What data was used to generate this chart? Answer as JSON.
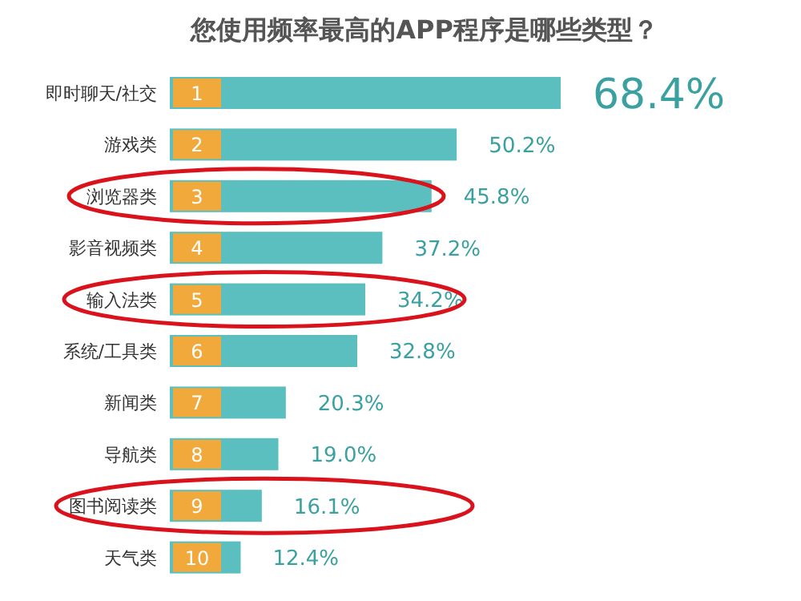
{
  "chart_data": {
    "type": "bar",
    "orientation": "horizontal",
    "title": "您使用频率最高的APP程序是哪些类型？",
    "categories": [
      "即时聊天/社交",
      "游戏类",
      "浏览器类",
      "影音视频类",
      "输入法类",
      "系统/工具类",
      "新闻类",
      "导航类",
      "图书阅读类",
      "天气类"
    ],
    "values": [
      68.4,
      50.2,
      45.8,
      37.2,
      34.2,
      32.8,
      20.3,
      19.0,
      16.1,
      12.4
    ],
    "value_labels": [
      "68.4%",
      "50.2%",
      "45.8%",
      "37.2%",
      "34.2%",
      "32.8%",
      "20.3%",
      "19.0%",
      "16.1%",
      "12.4%"
    ],
    "color": "#5cbfbf",
    "annotations": [
      "1",
      "2",
      "3",
      "4",
      "5",
      "6",
      "7",
      "8",
      "9",
      "10"
    ]
  }
}
